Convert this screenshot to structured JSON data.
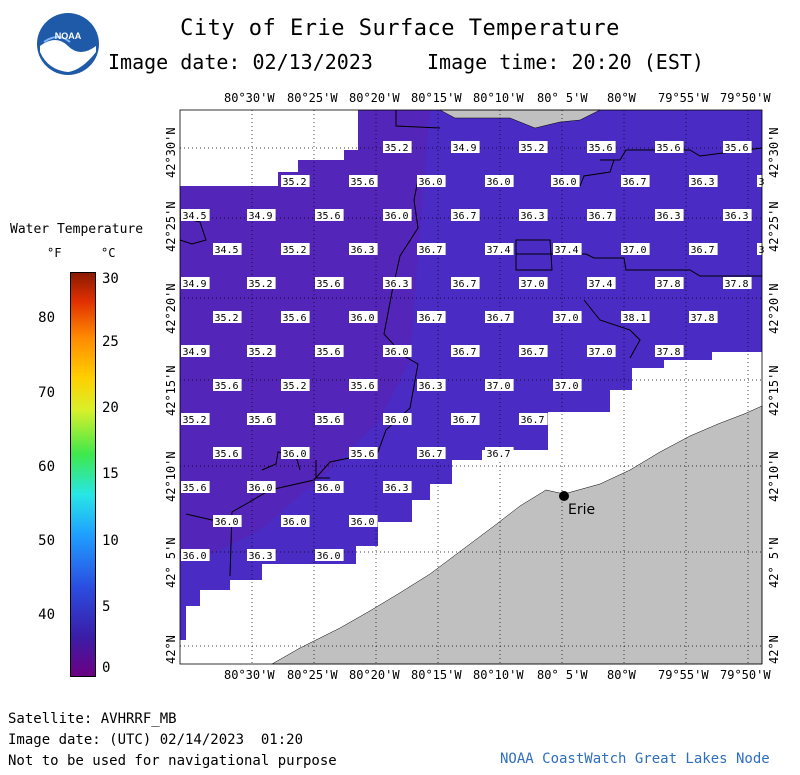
{
  "header": {
    "title": "City of Erie Surface Temperature",
    "image_date": "Image date: 02/13/2023",
    "image_time": "Image time: 20:20 (EST)"
  },
  "legend": {
    "title": "Water Temperature",
    "unit_f": "°F",
    "unit_c": "°C",
    "f_ticks": [
      "80",
      "70",
      "60",
      "50",
      "40"
    ],
    "c_ticks": [
      "30",
      "25",
      "20",
      "15",
      "10",
      "5",
      "0"
    ]
  },
  "axes": {
    "lon_labels": [
      "80°30'W",
      "80°25'W",
      "80°20'W",
      "80°15'W",
      "80°10'W",
      "80° 5'W",
      "80°W",
      "79°55'W",
      "79°50'W"
    ],
    "lat_labels": [
      "42°30'N",
      "42°25'N",
      "42°20'N",
      "42°15'N",
      "42°10'N",
      "42° 5'N",
      "42°N"
    ]
  },
  "map": {
    "city_label": "Erie",
    "colors": {
      "water": "#4a2cc4",
      "land": "#c0c0c0",
      "nodata": "#ffffff"
    },
    "temperature_rows": [
      [
        "35.2",
        "34.9",
        "35.2",
        "35.6",
        "35.6",
        "35.6"
      ],
      [
        "35.2",
        "35.6",
        "36.0",
        "36.0",
        "36.0",
        "36.7",
        "36.3",
        "3"
      ],
      [
        "34.5",
        "34.9",
        "35.6",
        "36.0",
        "36.7",
        "36.3",
        "36.7",
        "36.3",
        "36.3"
      ],
      [
        "34.5",
        "35.2",
        "36.3",
        "36.7",
        "37.4",
        "37.4",
        "37.0",
        "36.7",
        "3"
      ],
      [
        "34.9",
        "35.2",
        "35.6",
        "36.3",
        "36.7",
        "37.0",
        "37.4",
        "37.8",
        "37.8"
      ],
      [
        "35.2",
        "35.6",
        "36.0",
        "36.7",
        "36.7",
        "37.0",
        "38.1",
        "37.8"
      ],
      [
        "34.9",
        "35.2",
        "35.6",
        "36.0",
        "36.7",
        "36.7",
        "37.0",
        "37.8"
      ],
      [
        "35.6",
        "35.2",
        "35.6",
        "36.3",
        "37.0",
        "37.0"
      ],
      [
        "35.2",
        "35.6",
        "35.6",
        "36.0",
        "36.7",
        "36.7"
      ],
      [
        "35.6",
        "36.0",
        "35.6",
        "36.7",
        "36.7"
      ],
      [
        "35.6",
        "36.0",
        "36.0",
        "36.3"
      ],
      [
        "36.0",
        "36.0",
        "36.0"
      ],
      [
        "36.0",
        "36.3",
        "36.0"
      ]
    ]
  },
  "footer": {
    "satellite": "Satellite: AVHRRF_MB",
    "utc_date": "Image date: (UTC) 02/14/2023  01:20",
    "disclaimer": "Not to be used for navigational purpose",
    "credit": "NOAA CoastWatch Great Lakes Node"
  }
}
